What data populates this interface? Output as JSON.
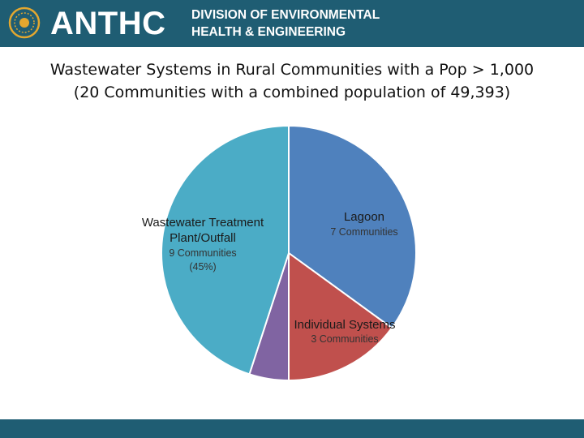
{
  "header": {
    "logo_text": "ANTHC",
    "division_line1": "DIVISION OF ENVIRONMENTAL",
    "division_line2": "HEALTH & ENGINEERING",
    "color": "#1f5d73"
  },
  "chart_data": {
    "type": "pie",
    "title_line1": "Wastewater Systems in Rural Communities with a Pop > 1,000",
    "title_line2": "(20 Communities with a combined population of 49,393)",
    "slices": [
      {
        "name": "Lagoon",
        "value": 7,
        "label": "7 Communities",
        "color": "#4f81bd"
      },
      {
        "name": "Individual Systems",
        "value": 3,
        "label": "3 Communities",
        "color": "#c0504d"
      },
      {
        "name": "",
        "value": 1,
        "label": "",
        "color": "#8064a2"
      },
      {
        "name": "Wastewater Treatment Plant/Outfall",
        "name_line1": "Wastewater Treatment",
        "name_line2": "Plant/Outfall",
        "value": 9,
        "label": "9 Communities",
        "label_line2": "(45%)",
        "color": "#4bacc6"
      }
    ]
  }
}
